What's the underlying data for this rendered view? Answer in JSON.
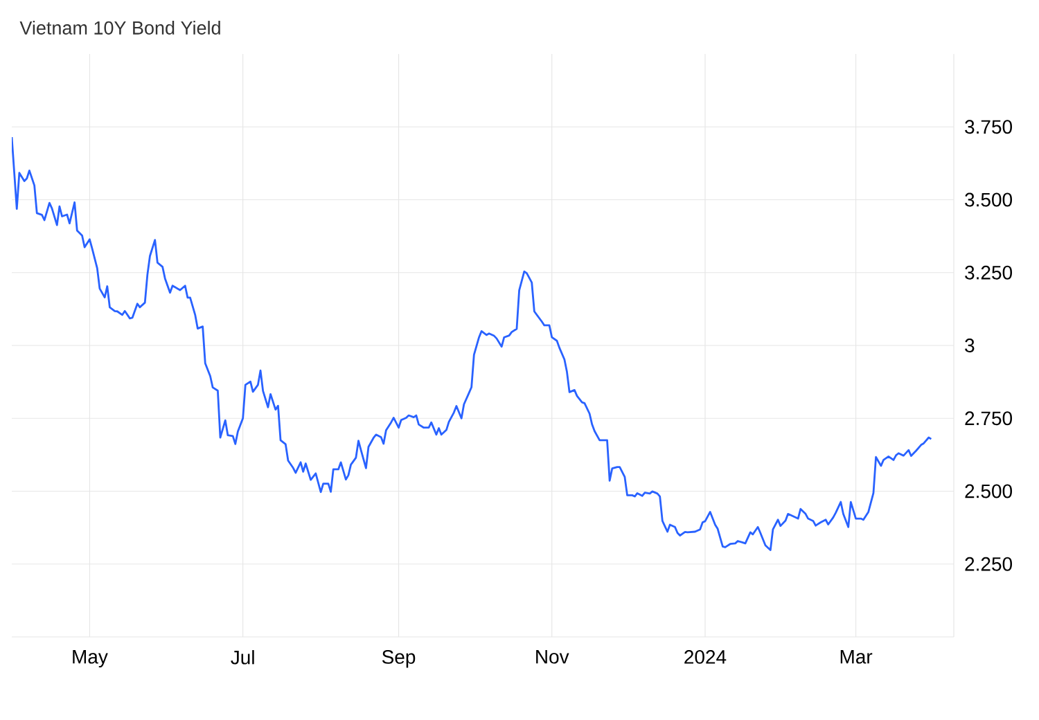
{
  "chart_data": {
    "type": "line",
    "title": "Vietnam 10Y Bond Yield",
    "xlim": [
      "2023-03-31",
      "2024-04-09"
    ],
    "xticks": [
      {
        "value": "2023-05-01",
        "label": "May"
      },
      {
        "value": "2023-07-01",
        "label": "Jul"
      },
      {
        "value": "2023-09-01",
        "label": "Sep"
      },
      {
        "value": "2023-11-01",
        "label": "Nov"
      },
      {
        "value": "2024-01-01",
        "label": "2024"
      },
      {
        "value": "2024-03-01",
        "label": "Mar"
      }
    ],
    "ylim": [
      2,
      4
    ],
    "yticks": [
      {
        "value": 2.25,
        "label": "2.250"
      },
      {
        "value": 2.5,
        "label": "2.500"
      },
      {
        "value": 2.75,
        "label": "2.750"
      },
      3,
      {
        "value": 3.25,
        "label": "3.250"
      },
      {
        "value": 3.5,
        "label": "3.500"
      },
      {
        "value": 3.75,
        "label": "3.750"
      }
    ],
    "grid": true,
    "series": [
      {
        "color": "#2962ff",
        "x": [
          "2023-03-31",
          "2023-04-02",
          "2023-04-03",
          "2023-04-05",
          "2023-04-06",
          "2023-04-07",
          "2023-04-09",
          "2023-04-10",
          "2023-04-12",
          "2023-04-13",
          "2023-04-15",
          "2023-04-16",
          "2023-04-18",
          "2023-04-19",
          "2023-04-20",
          "2023-04-22",
          "2023-04-23",
          "2023-04-25",
          "2023-04-26",
          "2023-04-28",
          "2023-04-29",
          "2023-05-01",
          "2023-05-02",
          "2023-05-04",
          "2023-05-05",
          "2023-05-07",
          "2023-05-08",
          "2023-05-09",
          "2023-05-11",
          "2023-05-12",
          "2023-05-14",
          "2023-05-15",
          "2023-05-17",
          "2023-05-18",
          "2023-05-20",
          "2023-05-21",
          "2023-05-23",
          "2023-05-24",
          "2023-05-25",
          "2023-05-27",
          "2023-05-28",
          "2023-05-30",
          "2023-05-31",
          "2023-06-02",
          "2023-06-03",
          "2023-06-06",
          "2023-06-08",
          "2023-06-09",
          "2023-06-10",
          "2023-06-12",
          "2023-06-13",
          "2023-06-15",
          "2023-06-16",
          "2023-06-18",
          "2023-06-19",
          "2023-06-21",
          "2023-06-22",
          "2023-06-24",
          "2023-06-25",
          "2023-06-27",
          "2023-06-28",
          "2023-06-29",
          "2023-07-01",
          "2023-07-02",
          "2023-07-04",
          "2023-07-05",
          "2023-07-07",
          "2023-07-08",
          "2023-07-09",
          "2023-07-11",
          "2023-07-12",
          "2023-07-14",
          "2023-07-15",
          "2023-07-16",
          "2023-07-18",
          "2023-07-19",
          "2023-07-21",
          "2023-07-22",
          "2023-07-24",
          "2023-07-25",
          "2023-07-26",
          "2023-07-28",
          "2023-07-30",
          "2023-08-01",
          "2023-08-02",
          "2023-08-04",
          "2023-08-05",
          "2023-08-06",
          "2023-08-08",
          "2023-08-09",
          "2023-08-11",
          "2023-08-12",
          "2023-08-13",
          "2023-08-15",
          "2023-08-16",
          "2023-08-17",
          "2023-08-19",
          "2023-08-20",
          "2023-08-22",
          "2023-08-23",
          "2023-08-25",
          "2023-08-26",
          "2023-08-27",
          "2023-08-29",
          "2023-08-30",
          "2023-09-01",
          "2023-09-02",
          "2023-09-04",
          "2023-09-05",
          "2023-09-07",
          "2023-09-08",
          "2023-09-09",
          "2023-09-11",
          "2023-09-13",
          "2023-09-14",
          "2023-09-16",
          "2023-09-17",
          "2023-09-18",
          "2023-09-20",
          "2023-09-21",
          "2023-09-23",
          "2023-09-24",
          "2023-09-26",
          "2023-09-27",
          "2023-09-29",
          "2023-09-30",
          "2023-10-01",
          "2023-10-03",
          "2023-10-04",
          "2023-10-06",
          "2023-10-07",
          "2023-10-09",
          "2023-10-10",
          "2023-10-12",
          "2023-10-13",
          "2023-10-15",
          "2023-10-16",
          "2023-10-18",
          "2023-10-19",
          "2023-10-21",
          "2023-10-22",
          "2023-10-24",
          "2023-10-25",
          "2023-10-26",
          "2023-10-28",
          "2023-10-29",
          "2023-10-31",
          "2023-11-01",
          "2023-11-03",
          "2023-11-04",
          "2023-11-06",
          "2023-11-07",
          "2023-11-08",
          "2023-11-10",
          "2023-11-11",
          "2023-11-13",
          "2023-11-14",
          "2023-11-16",
          "2023-11-17",
          "2023-11-18",
          "2023-11-20",
          "2023-11-22",
          "2023-11-23",
          "2023-11-24",
          "2023-11-25",
          "2023-11-27",
          "2023-11-28",
          "2023-11-30",
          "2023-12-01",
          "2023-12-03",
          "2023-12-04",
          "2023-12-05",
          "2023-12-07",
          "2023-12-08",
          "2023-12-10",
          "2023-12-11",
          "2023-12-13",
          "2023-12-14",
          "2023-12-15",
          "2023-12-17",
          "2023-12-18",
          "2023-12-20",
          "2023-12-21",
          "2023-12-22",
          "2023-12-24",
          "2023-12-25",
          "2023-12-28",
          "2023-12-30",
          "2023-12-31",
          "2024-01-01",
          "2024-01-03",
          "2024-01-05",
          "2024-01-06",
          "2024-01-08",
          "2024-01-09",
          "2024-01-11",
          "2024-01-13",
          "2024-01-14",
          "2024-01-16",
          "2024-01-17",
          "2024-01-19",
          "2024-01-20",
          "2024-01-22",
          "2024-01-23",
          "2024-01-25",
          "2024-01-27",
          "2024-01-28",
          "2024-01-30",
          "2024-01-31",
          "2024-02-02",
          "2024-02-03",
          "2024-02-07",
          "2024-02-08",
          "2024-02-10",
          "2024-02-11",
          "2024-02-13",
          "2024-02-14",
          "2024-02-16",
          "2024-02-18",
          "2024-02-19",
          "2024-02-21",
          "2024-02-22",
          "2024-02-24",
          "2024-02-25",
          "2024-02-27",
          "2024-02-28",
          "2024-03-01",
          "2024-03-03",
          "2024-03-04",
          "2024-03-06",
          "2024-03-08",
          "2024-03-09",
          "2024-03-11",
          "2024-03-12",
          "2024-03-14",
          "2024-03-16",
          "2024-03-17",
          "2024-03-18",
          "2024-03-20",
          "2024-03-22",
          "2024-03-23",
          "2024-03-25",
          "2024-03-27",
          "2024-03-28",
          "2024-03-30",
          "2024-03-31"
        ],
        "values": [
          3.715,
          3.469,
          3.592,
          3.564,
          3.573,
          3.6,
          3.549,
          3.454,
          3.448,
          3.43,
          3.489,
          3.47,
          3.413,
          3.477,
          3.443,
          3.449,
          3.419,
          3.491,
          3.394,
          3.377,
          3.337,
          3.364,
          3.332,
          3.265,
          3.195,
          3.165,
          3.203,
          3.131,
          3.118,
          3.117,
          3.105,
          3.118,
          3.093,
          3.095,
          3.143,
          3.131,
          3.147,
          3.243,
          3.307,
          3.362,
          3.284,
          3.27,
          3.23,
          3.181,
          3.205,
          3.19,
          3.205,
          3.164,
          3.164,
          3.105,
          3.058,
          3.065,
          2.939,
          2.895,
          2.856,
          2.845,
          2.684,
          2.743,
          2.692,
          2.689,
          2.662,
          2.705,
          2.75,
          2.865,
          2.876,
          2.841,
          2.865,
          2.914,
          2.844,
          2.788,
          2.833,
          2.78,
          2.793,
          2.675,
          2.661,
          2.605,
          2.58,
          2.563,
          2.599,
          2.567,
          2.595,
          2.539,
          2.561,
          2.497,
          2.526,
          2.526,
          2.498,
          2.575,
          2.575,
          2.599,
          2.54,
          2.555,
          2.591,
          2.615,
          2.673,
          2.641,
          2.579,
          2.652,
          2.683,
          2.694,
          2.685,
          2.663,
          2.709,
          2.736,
          2.752,
          2.718,
          2.744,
          2.752,
          2.76,
          2.754,
          2.76,
          2.729,
          2.718,
          2.718,
          2.736,
          2.694,
          2.716,
          2.694,
          2.71,
          2.738,
          2.77,
          2.792,
          2.75,
          2.798,
          2.837,
          2.857,
          2.968,
          3.028,
          3.049,
          3.036,
          3.041,
          3.033,
          3.024,
          2.996,
          3.028,
          3.034,
          3.046,
          3.057,
          3.189,
          3.254,
          3.248,
          3.216,
          3.117,
          3.105,
          3.082,
          3.069,
          3.069,
          3.028,
          3.016,
          2.992,
          2.952,
          2.909,
          2.84,
          2.847,
          2.827,
          2.805,
          2.802,
          2.766,
          2.729,
          2.706,
          2.675,
          2.675,
          2.675,
          2.536,
          2.578,
          2.583,
          2.583,
          2.549,
          2.486,
          2.486,
          2.482,
          2.493,
          2.484,
          2.495,
          2.492,
          2.499,
          2.492,
          2.482,
          2.398,
          2.361,
          2.385,
          2.377,
          2.357,
          2.348,
          2.36,
          2.359,
          2.361,
          2.369,
          2.393,
          2.397,
          2.429,
          2.385,
          2.371,
          2.31,
          2.308,
          2.319,
          2.321,
          2.329,
          2.324,
          2.321,
          2.359,
          2.352,
          2.377,
          2.357,
          2.314,
          2.298,
          2.369,
          2.402,
          2.381,
          2.399,
          2.422,
          2.406,
          2.439,
          2.422,
          2.406,
          2.398,
          2.382,
          2.393,
          2.402,
          2.386,
          2.41,
          2.426,
          2.463,
          2.422,
          2.377,
          2.463,
          2.406,
          2.406,
          2.402,
          2.429,
          2.494,
          2.617,
          2.587,
          2.607,
          2.619,
          2.607,
          2.623,
          2.63,
          2.622,
          2.641,
          2.621,
          2.639,
          2.659,
          2.664,
          2.684,
          2.679
        ]
      }
    ]
  }
}
